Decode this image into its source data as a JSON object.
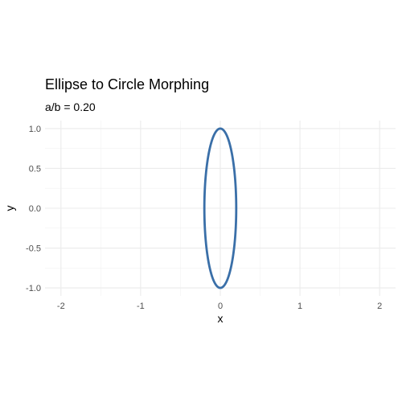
{
  "chart_data": {
    "type": "line",
    "title": "Ellipse to Circle Morphing",
    "subtitle": "a/b = 0.20",
    "xlabel": "x",
    "ylabel": "y",
    "xlim": [
      -2.2,
      2.2
    ],
    "ylim": [
      -1.1,
      1.1
    ],
    "x_ticks": [
      -2,
      -1,
      0,
      1,
      2
    ],
    "x_tick_labels": [
      "-2",
      "-1",
      "0",
      "1",
      "2"
    ],
    "y_ticks": [
      -1.0,
      -0.5,
      0.0,
      0.5,
      1.0
    ],
    "y_tick_labels": [
      "-1.0",
      "-0.5",
      "0.0",
      "0.5",
      "1.0"
    ],
    "grid": true,
    "series": [
      {
        "shape": "ellipse",
        "center": [
          0,
          0
        ],
        "a": 0.2,
        "b": 1.0,
        "color": "#3a6fa8"
      }
    ]
  }
}
